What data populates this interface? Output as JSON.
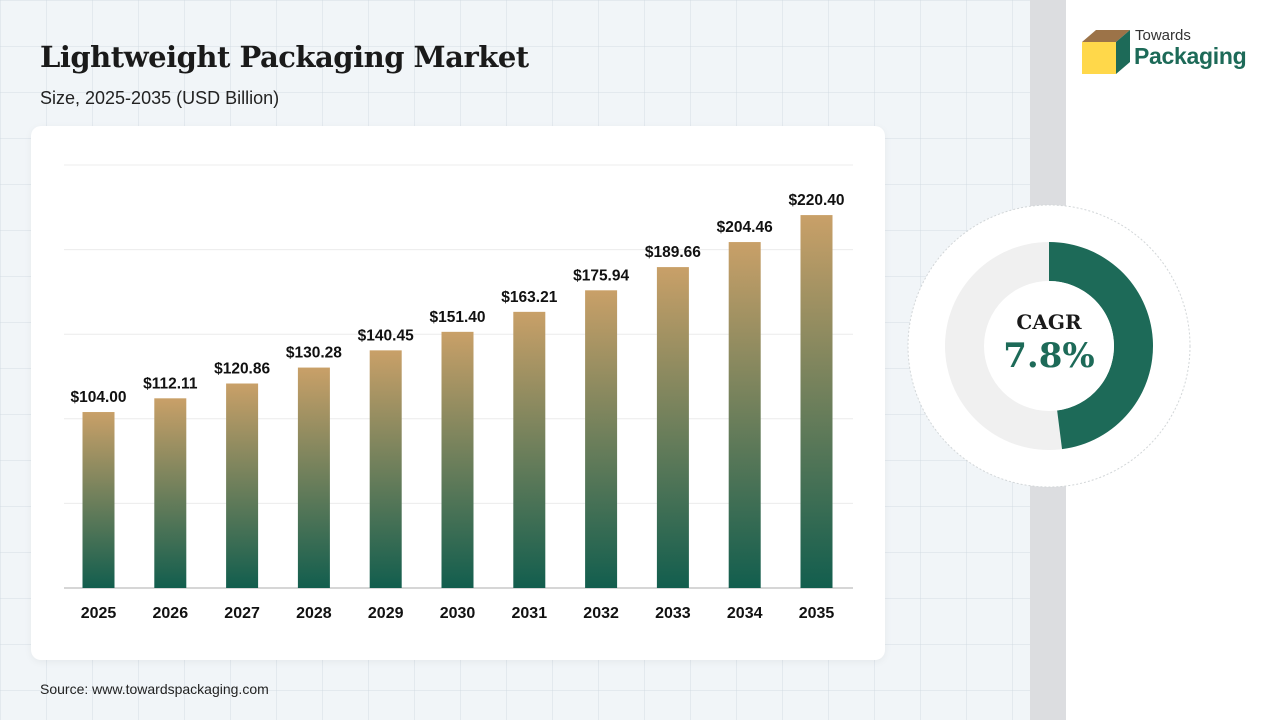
{
  "header": {
    "title": "Lightweight Packaging Market",
    "subtitle": "Size, 2025-2035 (USD Billion)"
  },
  "brand": {
    "line1": "Towards",
    "line2": "Packaging",
    "logo_icon": "box-icon",
    "accent_color": "#1d6a58"
  },
  "cagr": {
    "label": "CAGR",
    "value": "7.8%",
    "fraction": 0.48
  },
  "source": "Source: www.towardspackaging.com",
  "chart_data": {
    "type": "bar",
    "categories": [
      "2025",
      "2026",
      "2027",
      "2028",
      "2029",
      "2030",
      "2031",
      "2032",
      "2033",
      "2034",
      "2035"
    ],
    "values": [
      104.0,
      112.11,
      120.86,
      130.28,
      140.45,
      151.4,
      163.21,
      175.94,
      189.66,
      204.46,
      220.4
    ],
    "value_labels": [
      "$104.00",
      "$112.11",
      "$120.86",
      "$130.28",
      "$140.45",
      "$151.40",
      "$163.21",
      "$175.94",
      "$189.66",
      "$204.46",
      "$220.40"
    ],
    "ylim": [
      0,
      250
    ],
    "grid": true,
    "bar_gradient": [
      "#c9a068",
      "#125e4e"
    ]
  }
}
